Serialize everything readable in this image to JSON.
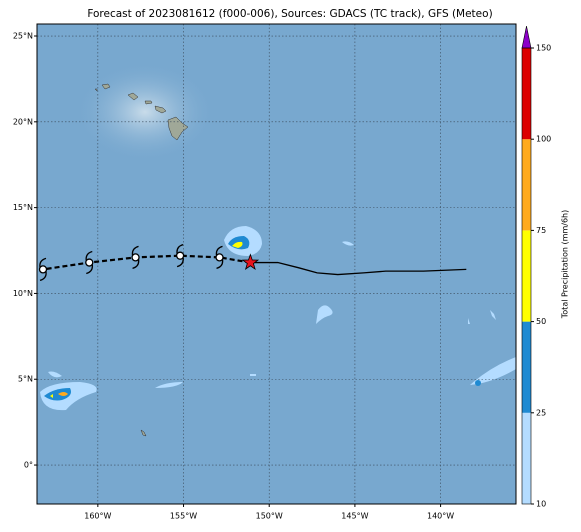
{
  "title": "Forecast of 2023081612 (f000-006), Sources: GDACS (TC track), GFS (Meteo)",
  "map": {
    "xlim": [
      -163.55,
      -135.6
    ],
    "ylim": [
      -2.27,
      25.7
    ],
    "xticks": [
      {
        "value": -160,
        "label": "160°W"
      },
      {
        "value": -155,
        "label": "155°W"
      },
      {
        "value": -150,
        "label": "150°W"
      },
      {
        "value": -145,
        "label": "145°W"
      },
      {
        "value": -140,
        "label": "140°W"
      }
    ],
    "yticks": [
      {
        "value": 0,
        "label": "0°"
      },
      {
        "value": 5,
        "label": "5°N"
      },
      {
        "value": 10,
        "label": "10°N"
      },
      {
        "value": 15,
        "label": "15°N"
      },
      {
        "value": 20,
        "label": "20°N"
      },
      {
        "value": 25,
        "label": "25°N"
      }
    ],
    "grid": true
  },
  "past_track": {
    "color": "#000000",
    "lon": [
      -151.1,
      -149.5,
      -148.3,
      -147.2,
      -146.0,
      -144.5,
      -143.2,
      -141.0,
      -138.5
    ],
    "lat": [
      11.8,
      11.8,
      11.5,
      11.2,
      11.1,
      11.2,
      11.3,
      11.3,
      11.4
    ]
  },
  "forecast_track": {
    "color": "#000000",
    "lon": [
      -151.1,
      -152.9,
      -155.2,
      -157.8,
      -160.5,
      -163.2
    ],
    "lat": [
      11.8,
      12.1,
      12.2,
      12.1,
      11.8,
      11.4
    ]
  },
  "current_position": {
    "color": "#e8141e",
    "lon": -151.1,
    "lat": 11.8
  },
  "colorbar": {
    "label": "Total Precipitation (mm/6h)",
    "ticks": [
      10,
      25,
      50,
      75,
      100,
      150
    ],
    "colors": [
      "#b4dcff",
      "#1f8ad2",
      "#ffff00",
      "#ffaa1e",
      "#dc0000"
    ],
    "extend_color": "#8c00c8"
  }
}
